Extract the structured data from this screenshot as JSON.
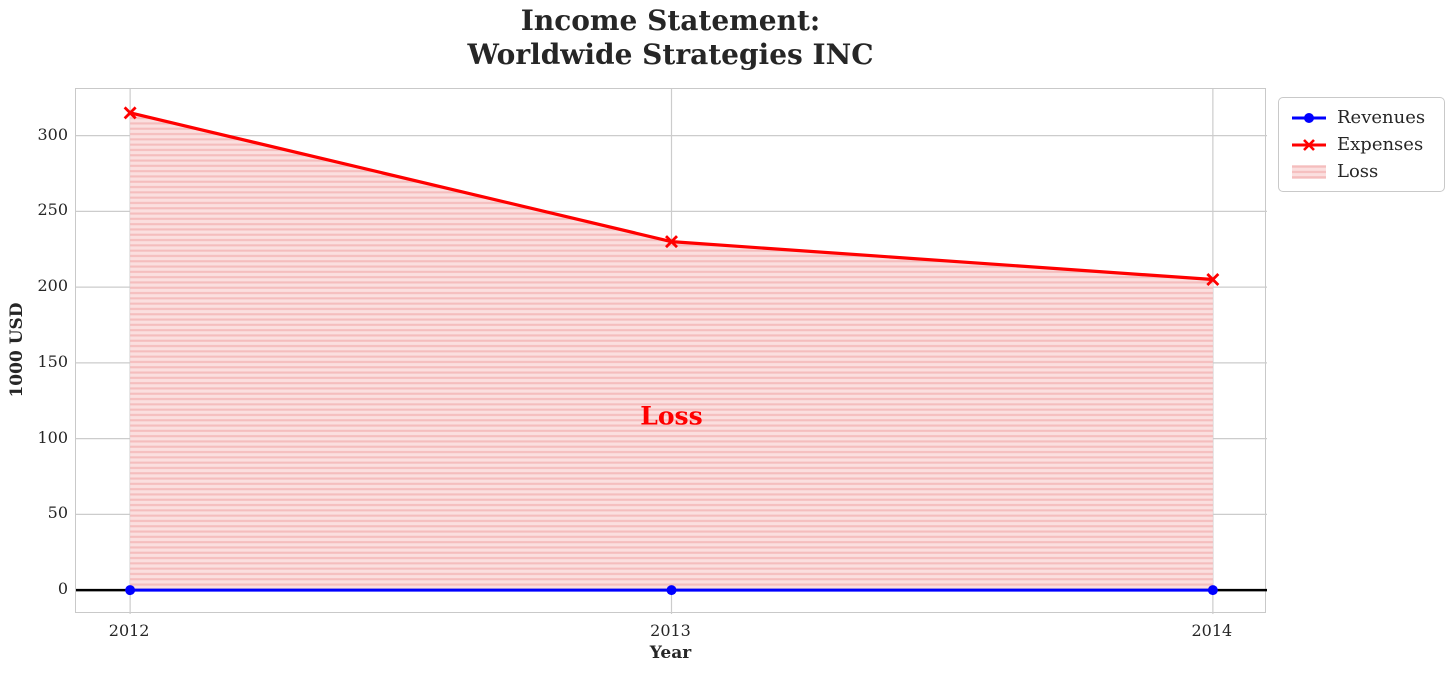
{
  "chart_data": {
    "type": "line",
    "title": "Income Statement:\nWorldwide Strategies INC",
    "xlabel": "Year",
    "ylabel": "1000 USD",
    "x": [
      2012,
      2013,
      2014
    ],
    "series": [
      {
        "name": "Revenues",
        "values": [
          0,
          0,
          0
        ],
        "color": "#0000ff",
        "marker": "circle"
      },
      {
        "name": "Expenses",
        "values": [
          315,
          230,
          205
        ],
        "color": "#ff0000",
        "marker": "x"
      }
    ],
    "fill_between": {
      "label": "Loss",
      "upper": "Expenses",
      "lower": "Revenues",
      "facecolor": "#fbdfdf",
      "hatch": "-",
      "hatchcolor": "#f5bdbd"
    },
    "annotation": {
      "text": "Loss",
      "x": 2013,
      "y": 115,
      "color": "#ff0000"
    },
    "x_ticks": [
      "2012",
      "2013",
      "2014"
    ],
    "x_tick_values": [
      2012,
      2013,
      2014
    ],
    "y_ticks": [
      0,
      50,
      100,
      150,
      200,
      250,
      300
    ],
    "xlim": [
      2011.9,
      2014.1
    ],
    "ylim": [
      -15.75,
      330.75
    ],
    "grid": true,
    "grid_color": "#cccccc",
    "zero_line_color": "#000000",
    "legend": {
      "entries": [
        "Revenues",
        "Expenses",
        "Loss"
      ],
      "position": "outside upper right"
    }
  }
}
